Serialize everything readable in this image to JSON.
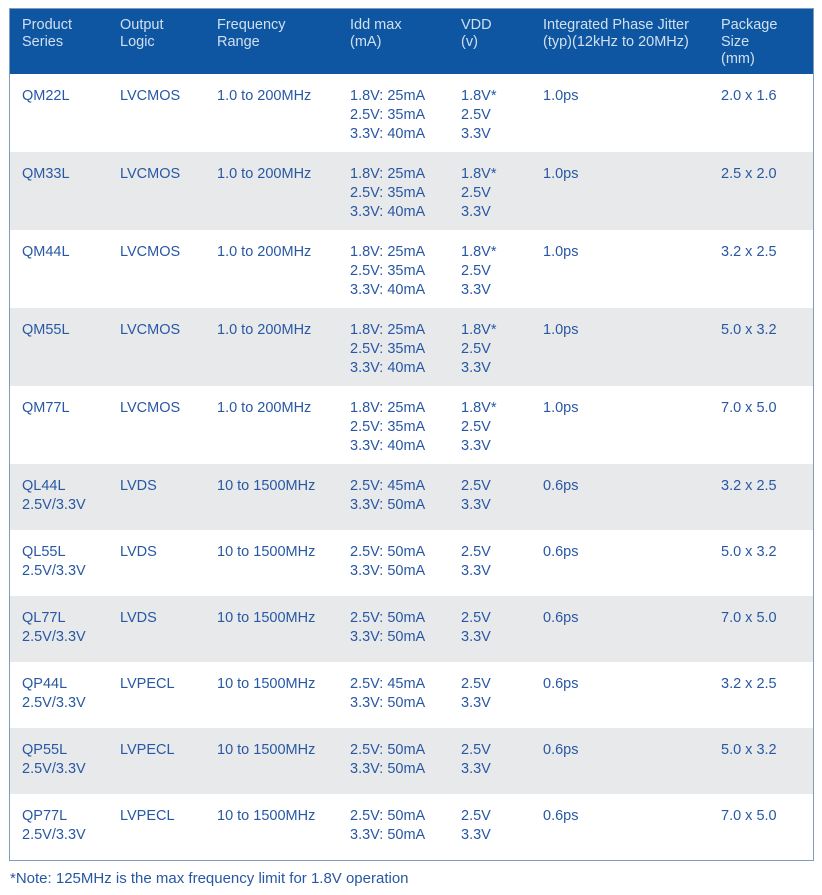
{
  "columns": [
    "Product\nSeries",
    "Output\nLogic",
    "Frequency\nRange",
    "Idd max\n(mA)",
    "VDD\n(v)",
    "Integrated Phase Jitter\n(typ)(12kHz to 20MHz)",
    "Package Size\n(mm)"
  ],
  "rows": [
    {
      "series": "QM22L",
      "logic": "LVCMOS",
      "freq": "1.0 to 200MHz",
      "idd": "1.8V: 25mA\n2.5V: 35mA\n3.3V: 40mA",
      "vdd": "1.8V*\n2.5V\n3.3V",
      "jitter": "1.0ps",
      "pkg": "2.0 x 1.6"
    },
    {
      "series": "QM33L",
      "logic": "LVCMOS",
      "freq": "1.0 to 200MHz",
      "idd": "1.8V: 25mA\n2.5V: 35mA\n3.3V: 40mA",
      "vdd": "1.8V*\n2.5V\n3.3V",
      "jitter": "1.0ps",
      "pkg": "2.5 x 2.0"
    },
    {
      "series": "QM44L",
      "logic": "LVCMOS",
      "freq": "1.0 to 200MHz",
      "idd": "1.8V: 25mA\n2.5V: 35mA\n3.3V: 40mA",
      "vdd": "1.8V*\n2.5V\n3.3V",
      "jitter": "1.0ps",
      "pkg": "3.2 x 2.5"
    },
    {
      "series": "QM55L",
      "logic": "LVCMOS",
      "freq": "1.0 to 200MHz",
      "idd": "1.8V: 25mA\n2.5V: 35mA\n3.3V: 40mA",
      "vdd": "1.8V*\n2.5V\n3.3V",
      "jitter": "1.0ps",
      "pkg": "5.0 x 3.2"
    },
    {
      "series": "QM77L",
      "logic": "LVCMOS",
      "freq": "1.0 to 200MHz",
      "idd": "1.8V: 25mA\n2.5V: 35mA\n3.3V: 40mA",
      "vdd": "1.8V*\n2.5V\n3.3V",
      "jitter": "1.0ps",
      "pkg": "7.0 x 5.0"
    },
    {
      "series": "QL44L\n2.5V/3.3V",
      "logic": "LVDS",
      "freq": "10 to 1500MHz",
      "idd": "2.5V: 45mA\n3.3V: 50mA",
      "vdd": "2.5V\n3.3V",
      "jitter": "0.6ps",
      "pkg": "3.2 x 2.5"
    },
    {
      "series": "QL55L\n2.5V/3.3V",
      "logic": "LVDS",
      "freq": "10 to 1500MHz",
      "idd": "2.5V: 50mA\n3.3V: 50mA",
      "vdd": "2.5V\n3.3V",
      "jitter": "0.6ps",
      "pkg": "5.0 x 3.2"
    },
    {
      "series": "QL77L\n2.5V/3.3V",
      "logic": "LVDS",
      "freq": "10 to 1500MHz",
      "idd": "2.5V: 50mA\n3.3V: 50mA",
      "vdd": "2.5V\n3.3V",
      "jitter": "0.6ps",
      "pkg": "7.0 x 5.0"
    },
    {
      "series": "QP44L\n2.5V/3.3V",
      "logic": "LVPECL",
      "freq": "10 to 1500MHz",
      "idd": "2.5V: 45mA\n3.3V: 50mA",
      "vdd": "2.5V\n3.3V",
      "jitter": "0.6ps",
      "pkg": "3.2 x 2.5"
    },
    {
      "series": "QP55L\n2.5V/3.3V",
      "logic": "LVPECL",
      "freq": "10 to 1500MHz",
      "idd": "2.5V: 50mA\n3.3V: 50mA",
      "vdd": "2.5V\n3.3V",
      "jitter": "0.6ps",
      "pkg": "5.0 x 3.2"
    },
    {
      "series": "QP77L\n2.5V/3.3V",
      "logic": "LVPECL",
      "freq": "10 to 1500MHz",
      "idd": "2.5V: 50mA\n3.3V: 50mA",
      "vdd": "2.5V\n3.3V",
      "jitter": "0.6ps",
      "pkg": "7.0 x 5.0"
    }
  ],
  "footnote": "*Note: 125MHz is the max frequency limit for 1.8V operation",
  "colors": {
    "header_bg": "#0e55a2",
    "header_text": "#cfe0ef",
    "body_text": "#2858a3",
    "zebra_row_bg": "#e8e9eb",
    "table_border": "#7d9cbe"
  }
}
